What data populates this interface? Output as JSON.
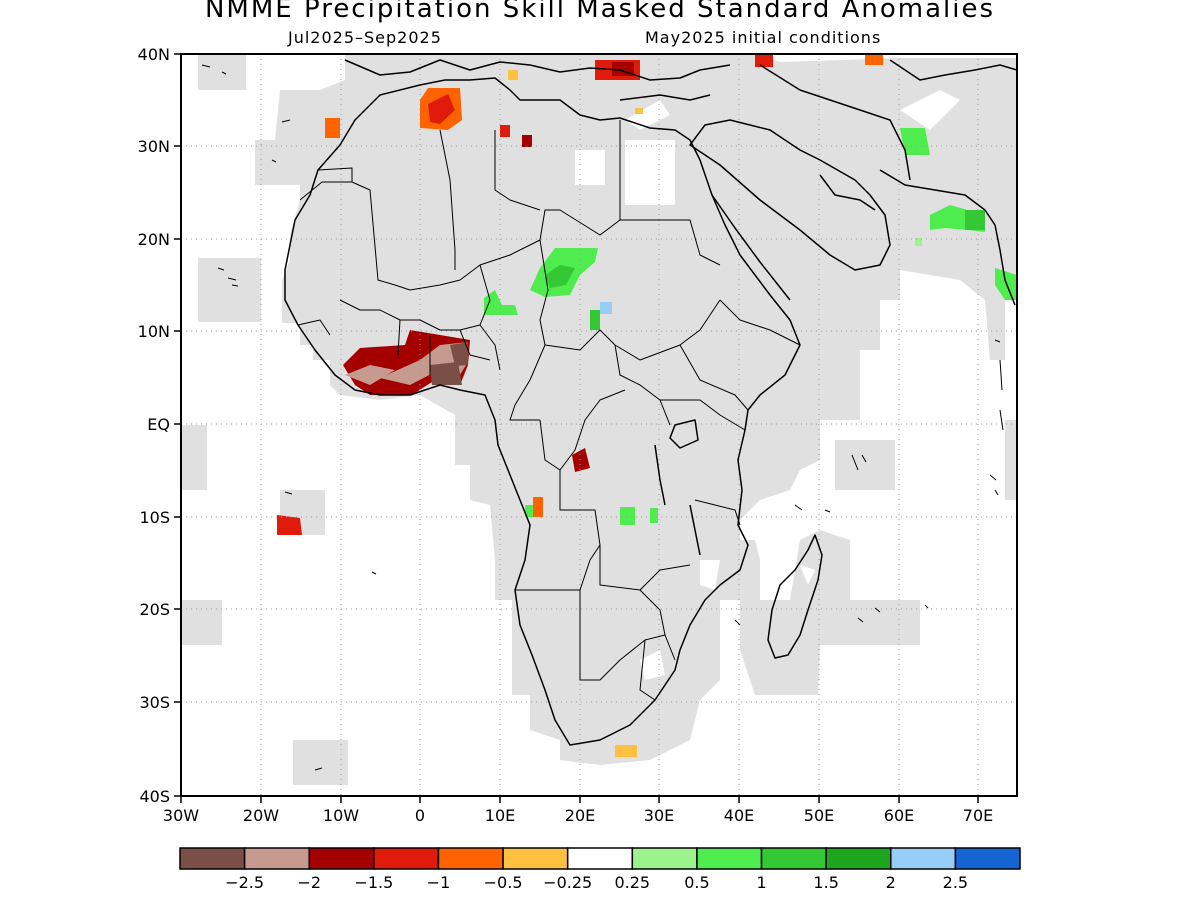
{
  "title": "NMME Precipitation Skill Masked Standard Anomalies",
  "subtitle_left": "Jul2025–Sep2025",
  "subtitle_right": "May2025 initial conditions",
  "lat_labels": [
    "40N",
    "30N",
    "20N",
    "10N",
    "EQ",
    "10S",
    "20S",
    "30S",
    "40S"
  ],
  "lon_labels": [
    "30W",
    "20W",
    "10W",
    "0",
    "10E",
    "20E",
    "30E",
    "40E",
    "50E",
    "60E",
    "70E"
  ],
  "colorbar": {
    "colors": [
      "#7a4f45",
      "#c79a8f",
      "#a50000",
      "#e01b0b",
      "#ff6300",
      "#ffbf3f",
      "#ffffff",
      "#9cf28c",
      "#4fec4f",
      "#34c834",
      "#1ea51e",
      "#96cef8",
      "#1464d2"
    ],
    "labels": [
      "−2.5",
      "−2",
      "−1.5",
      "−1",
      "−0.5",
      "−0.25",
      "0.25",
      "0.5",
      "1",
      "1.5",
      "2",
      "2.5"
    ]
  },
  "colors": {
    "mask_gray": "#e0e0e0",
    "frame": "#000000",
    "grid": "#9a9a9a"
  }
}
